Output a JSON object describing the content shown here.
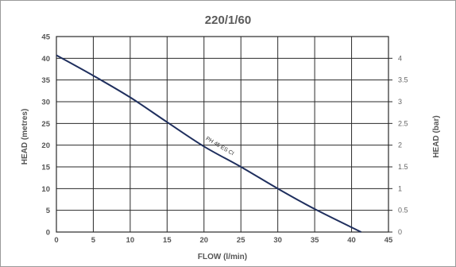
{
  "chart_data": {
    "type": "line",
    "title": "220/1/60",
    "xlabel": "FLOW (l/min)",
    "ylabel": "HEAD (metres)",
    "y2label": "HEAD (bar)",
    "xlim": [
      0,
      45
    ],
    "ylim": [
      0,
      45
    ],
    "y2lim": [
      0,
      4.5
    ],
    "x_ticks": [
      "0",
      "5",
      "10",
      "15",
      "20",
      "25",
      "30",
      "35",
      "40",
      "45"
    ],
    "y_ticks": [
      "0",
      "5",
      "10",
      "15",
      "20",
      "25",
      "30",
      "35",
      "40",
      "45"
    ],
    "y2_ticks": [
      "0",
      "0.5",
      "1",
      "1.5",
      "2",
      "2.5",
      "3",
      "3.5",
      "4"
    ],
    "grid": true,
    "series": [
      {
        "name": "PH 45 ES CI",
        "color": "#1f2f5e",
        "x": [
          0,
          5,
          10,
          15,
          20,
          25,
          30,
          35,
          41.3
        ],
        "y": [
          40.7,
          36.0,
          31.0,
          25.3,
          19.7,
          15.0,
          10.0,
          5.3,
          0
        ]
      }
    ]
  }
}
